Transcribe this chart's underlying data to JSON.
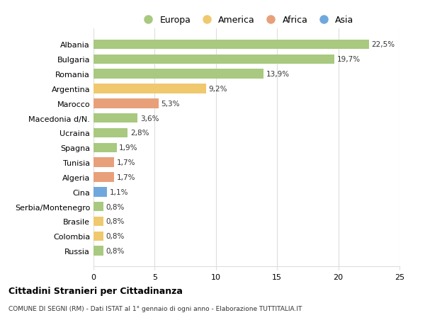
{
  "title": "Cittadini Stranieri per Cittadinanza",
  "subtitle": "COMUNE DI SEGNI (RM) - Dati ISTAT al 1° gennaio di ogni anno - Elaborazione TUTTITALIA.IT",
  "categories": [
    "Albania",
    "Bulgaria",
    "Romania",
    "Argentina",
    "Marocco",
    "Macedonia d/N.",
    "Ucraina",
    "Spagna",
    "Tunisia",
    "Algeria",
    "Cina",
    "Serbia/Montenegro",
    "Brasile",
    "Colombia",
    "Russia"
  ],
  "values": [
    22.5,
    19.7,
    13.9,
    9.2,
    5.3,
    3.6,
    2.8,
    1.9,
    1.7,
    1.7,
    1.1,
    0.8,
    0.8,
    0.8,
    0.8
  ],
  "labels": [
    "22,5%",
    "19,7%",
    "13,9%",
    "9,2%",
    "5,3%",
    "3,6%",
    "2,8%",
    "1,9%",
    "1,7%",
    "1,7%",
    "1,1%",
    "0,8%",
    "0,8%",
    "0,8%",
    "0,8%"
  ],
  "continents": [
    "Europa",
    "Europa",
    "Europa",
    "America",
    "Africa",
    "Europa",
    "Europa",
    "Europa",
    "Africa",
    "Africa",
    "Asia",
    "Europa",
    "America",
    "America",
    "Europa"
  ],
  "colors": {
    "Europa": "#a8c97f",
    "America": "#f0c96e",
    "Africa": "#e8a07a",
    "Asia": "#6fa8dc"
  },
  "legend_order": [
    "Europa",
    "America",
    "Africa",
    "Asia"
  ],
  "xlim": [
    0,
    25
  ],
  "background_color": "#ffffff",
  "grid_color": "#dddddd",
  "bar_height": 0.65
}
